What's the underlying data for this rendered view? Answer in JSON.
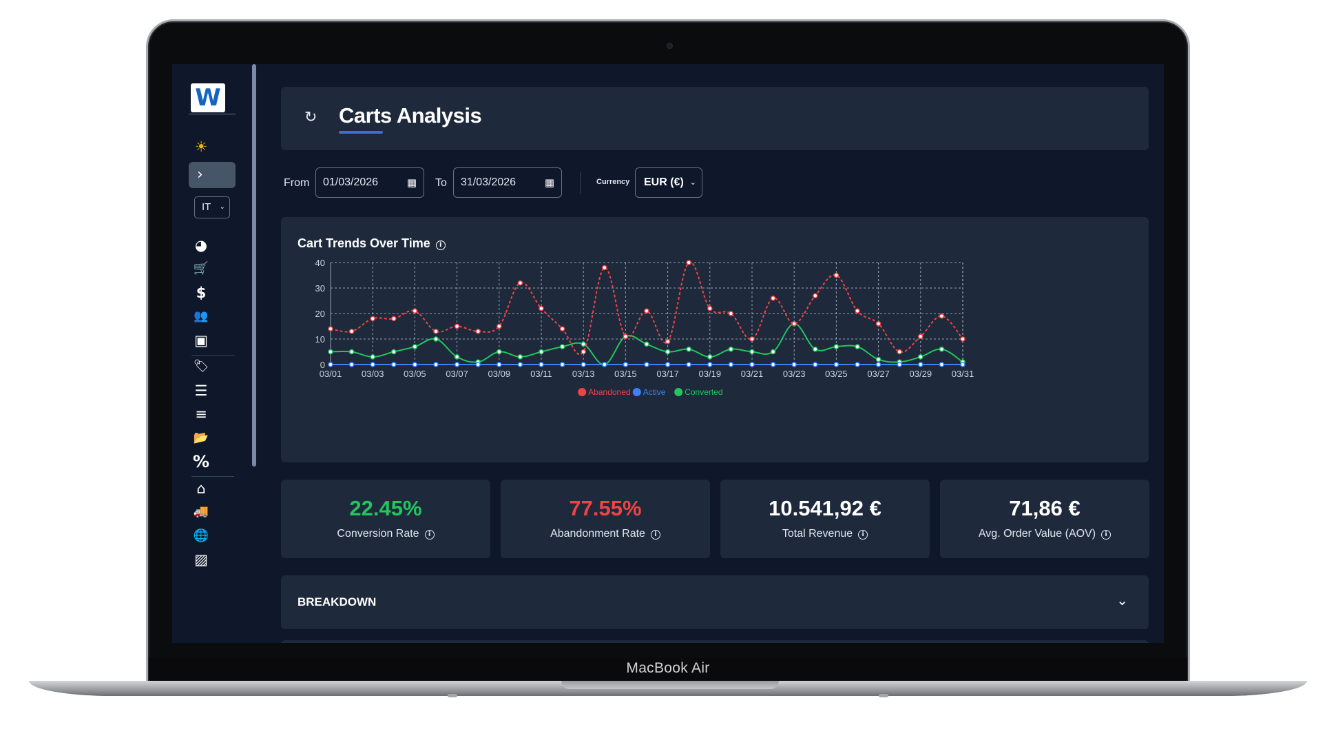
{
  "device": {
    "model_label": "MacBook Air"
  },
  "sidebar": {
    "logo_letter": "W",
    "toggle_glyph": "›",
    "language": "IT",
    "icons": [
      {
        "name": "sun-icon",
        "glyph": "☀",
        "color": "#f5b400"
      },
      {
        "name": "pie-chart-icon",
        "glyph": "◕"
      },
      {
        "name": "cart-icon",
        "glyph": "🛒"
      },
      {
        "name": "dollar-icon",
        "glyph": "$"
      },
      {
        "name": "users-icon",
        "glyph": "👥"
      },
      {
        "name": "box-icon",
        "glyph": "▣"
      },
      {
        "name": "tag-icon",
        "glyph": "🏷"
      },
      {
        "name": "ordered-list-icon",
        "glyph": "☰"
      },
      {
        "name": "filter-icon",
        "glyph": "≡"
      },
      {
        "name": "folder-icon",
        "glyph": "📂"
      },
      {
        "name": "percent-icon",
        "glyph": "%"
      },
      {
        "name": "warehouse-icon",
        "glyph": "⌂"
      },
      {
        "name": "truck-icon",
        "glyph": "🚚"
      },
      {
        "name": "globe-icon",
        "glyph": "🌐"
      },
      {
        "name": "image-icon",
        "glyph": "▨"
      }
    ]
  },
  "header": {
    "title": "Carts Analysis",
    "refresh_icon": "refresh-icon"
  },
  "filters": {
    "from_label": "From",
    "from_value": "01/03/2026",
    "to_label": "To",
    "to_value": "31/03/2026",
    "currency_label": "Currency",
    "currency_value": "EUR (€)"
  },
  "chart_card": {
    "title": "Cart Trends Over Time"
  },
  "chart_data": {
    "type": "line",
    "x": [
      "03/01",
      "03/02",
      "03/03",
      "03/04",
      "03/05",
      "03/06",
      "03/07",
      "03/08",
      "03/09",
      "03/10",
      "03/11",
      "03/12",
      "03/13",
      "03/14",
      "03/15",
      "03/16",
      "03/17",
      "03/18",
      "03/19",
      "03/20",
      "03/21",
      "03/22",
      "03/23",
      "03/24",
      "03/25",
      "03/26",
      "03/27",
      "03/28",
      "03/29",
      "03/30",
      "03/31"
    ],
    "x_tick_labels": [
      "03/01",
      "03/03",
      "03/05",
      "03/07",
      "03/09",
      "03/11",
      "03/13",
      "03/15",
      "03/17",
      "03/19",
      "03/21",
      "03/23",
      "03/25",
      "03/27",
      "03/29",
      "03/31"
    ],
    "y_ticks": [
      0,
      10,
      20,
      30,
      40
    ],
    "ylim": [
      0,
      40
    ],
    "grid": true,
    "legend_position": "bottom",
    "series": [
      {
        "name": "Abandoned",
        "color": "#ef4444",
        "dashed": true,
        "values": [
          14,
          13,
          18,
          18,
          21,
          13,
          15,
          13,
          15,
          32,
          22,
          14,
          5,
          38,
          11,
          21,
          9,
          40,
          22,
          20,
          10,
          26,
          16,
          27,
          35,
          21,
          16,
          5,
          11,
          19,
          10
        ]
      },
      {
        "name": "Active",
        "color": "#3b82f6",
        "dashed": false,
        "values": [
          0,
          0,
          0,
          0,
          0,
          0,
          0,
          0,
          0,
          0,
          0,
          0,
          0,
          0,
          0,
          0,
          0,
          0,
          0,
          0,
          0,
          0,
          0,
          0,
          0,
          0,
          0,
          0,
          0,
          0,
          0
        ]
      },
      {
        "name": "Converted",
        "color": "#22c55e",
        "dashed": false,
        "values": [
          5,
          5,
          3,
          5,
          7,
          10,
          3,
          1,
          5,
          3,
          5,
          7,
          8,
          0,
          11,
          8,
          5,
          6,
          3,
          6,
          5,
          5,
          16,
          6,
          7,
          7,
          2,
          1,
          3,
          6,
          1
        ]
      }
    ]
  },
  "kpis": [
    {
      "value": "22.45%",
      "label": "Conversion Rate",
      "color": "#22c55e"
    },
    {
      "value": "77.55%",
      "label": "Abandonment Rate",
      "color": "#ef4444"
    },
    {
      "value": "10.541,92 €",
      "label": "Total Revenue",
      "color": "#ffffff"
    },
    {
      "value": "71,86 €",
      "label": "Avg. Order Value (AOV)",
      "color": "#ffffff"
    }
  ],
  "breakdown": {
    "label": "BREAKDOWN"
  }
}
